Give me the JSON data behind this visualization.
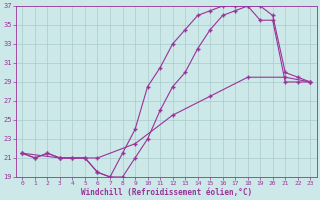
{
  "xlabel": "Windchill (Refroidissement éolien,°C)",
  "bg_color": "#cce8e8",
  "grid_color": "#aacccc",
  "line_color": "#993399",
  "xlim": [
    -0.5,
    23.5
  ],
  "ylim": [
    19,
    37
  ],
  "yticks": [
    19,
    21,
    23,
    25,
    27,
    29,
    31,
    33,
    35,
    37
  ],
  "xticks": [
    0,
    1,
    2,
    3,
    4,
    5,
    6,
    7,
    8,
    9,
    10,
    11,
    12,
    13,
    14,
    15,
    16,
    17,
    18,
    19,
    20,
    21,
    22,
    23
  ],
  "line1_x": [
    0,
    1,
    2,
    3,
    4,
    5,
    6,
    7,
    8,
    9,
    10,
    11,
    12,
    13,
    14,
    15,
    16,
    17,
    18,
    19,
    20,
    21,
    22,
    23
  ],
  "line1_y": [
    21.5,
    21.0,
    21.5,
    21.0,
    21.0,
    21.0,
    19.5,
    19.0,
    19.0,
    21.0,
    23.0,
    26.0,
    28.5,
    30.0,
    32.5,
    34.5,
    36.0,
    36.5,
    37.0,
    37.0,
    36.0,
    30.0,
    29.5,
    29.0
  ],
  "line2_x": [
    0,
    1,
    2,
    3,
    4,
    5,
    6,
    7,
    8,
    9,
    10,
    11,
    12,
    13,
    14,
    15,
    16,
    17,
    18,
    19,
    20,
    21,
    22,
    23
  ],
  "line2_y": [
    21.5,
    21.0,
    21.5,
    21.0,
    21.0,
    21.0,
    19.5,
    19.0,
    21.5,
    24.0,
    28.5,
    30.5,
    33.0,
    34.5,
    36.0,
    36.5,
    37.0,
    37.0,
    37.0,
    35.5,
    35.5,
    29.0,
    29.0,
    29.0
  ],
  "line3_x": [
    0,
    3,
    6,
    9,
    12,
    15,
    18,
    21,
    23
  ],
  "line3_y": [
    21.5,
    21.0,
    21.0,
    22.5,
    25.5,
    27.5,
    29.5,
    29.5,
    29.0
  ]
}
